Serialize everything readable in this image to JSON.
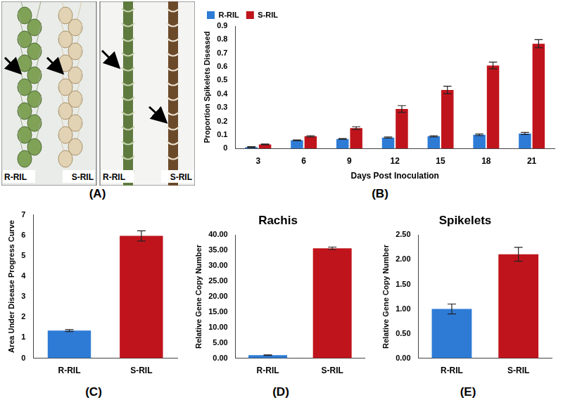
{
  "photo_panel": {
    "panel_label": "(A)",
    "captions": [
      "R-RIL",
      "S-RIL",
      "R-RIL",
      "S-RIL"
    ]
  },
  "chart_data": [
    {
      "type": "bar",
      "panel_label": "(B)",
      "x_label": "Days Post Inoculation",
      "y_label": "Proportion Spikelets Diseased",
      "categories": [
        3,
        6,
        9,
        12,
        15,
        18,
        21
      ],
      "series": [
        {
          "name": "R-RIL",
          "color": "#2e7bd6",
          "values": [
            0.01,
            0.06,
            0.07,
            0.08,
            0.09,
            0.1,
            0.11
          ],
          "errors": [
            0.003,
            0.003,
            0.003,
            0.004,
            0.004,
            0.006,
            0.008
          ]
        },
        {
          "name": "S-RIL",
          "color": "#c0141c",
          "values": [
            0.03,
            0.09,
            0.15,
            0.29,
            0.43,
            0.61,
            0.77
          ],
          "errors": [
            0.003,
            0.004,
            0.01,
            0.025,
            0.028,
            0.025,
            0.03
          ]
        }
      ],
      "ylim": [
        0,
        0.9
      ],
      "yticks": [
        0,
        0.1,
        0.2,
        0.3,
        0.4,
        0.5,
        0.6,
        0.7,
        0.8,
        0.9
      ],
      "grid": false,
      "legend": "upper left"
    },
    {
      "type": "bar",
      "panel_label": "(C)",
      "y_label": "Area Under Disease Progress Curve",
      "categories": [
        "R-RIL",
        "S-RIL"
      ],
      "values": [
        1.35,
        5.97
      ],
      "errors": [
        0.05,
        0.25
      ],
      "colors": [
        "#2e7bd6",
        "#c0141c"
      ],
      "ylim": [
        0,
        7
      ],
      "yticks": [
        0,
        1,
        2,
        3,
        4,
        5,
        6,
        7
      ],
      "grid": false
    },
    {
      "type": "bar",
      "panel_label": "(D)",
      "title": "Rachis",
      "y_label": "Relative Gene Copy Number",
      "categories": [
        "R-RIL",
        "S-RIL"
      ],
      "values": [
        1.0,
        35.7
      ],
      "errors": [
        0.1,
        0.4
      ],
      "colors": [
        "#2e7bd6",
        "#c0141c"
      ],
      "ylim": [
        0,
        40
      ],
      "yticks": [
        {
          "value": 0,
          "label": "0.00"
        },
        {
          "value": 5,
          "label": "5.00"
        },
        {
          "value": 10,
          "label": "10.00"
        },
        {
          "value": 15,
          "label": "15.00"
        },
        {
          "value": 20,
          "label": "20.00"
        },
        {
          "value": 25,
          "label": "25.00"
        },
        {
          "value": 30,
          "label": "30.00"
        },
        {
          "value": 35,
          "label": "35.00"
        },
        {
          "value": 40,
          "label": "40.00"
        }
      ],
      "grid": false
    },
    {
      "type": "bar",
      "panel_label": "(E)",
      "title": "Spikelets",
      "y_label": "Relative Gene Copy Number",
      "categories": [
        "R-RIL",
        "S-RIL"
      ],
      "values": [
        1.0,
        2.11
      ],
      "errors": [
        0.1,
        0.14
      ],
      "colors": [
        "#2e7bd6",
        "#c0141c"
      ],
      "ylim": [
        0,
        2.5
      ],
      "yticks": [
        {
          "value": 0,
          "label": "0.00"
        },
        {
          "value": 0.5,
          "label": "0.50"
        },
        {
          "value": 1,
          "label": "1.00"
        },
        {
          "value": 1.5,
          "label": "1.50"
        },
        {
          "value": 2,
          "label": "2.00"
        },
        {
          "value": 2.5,
          "label": "2.50"
        }
      ],
      "grid": false
    }
  ]
}
